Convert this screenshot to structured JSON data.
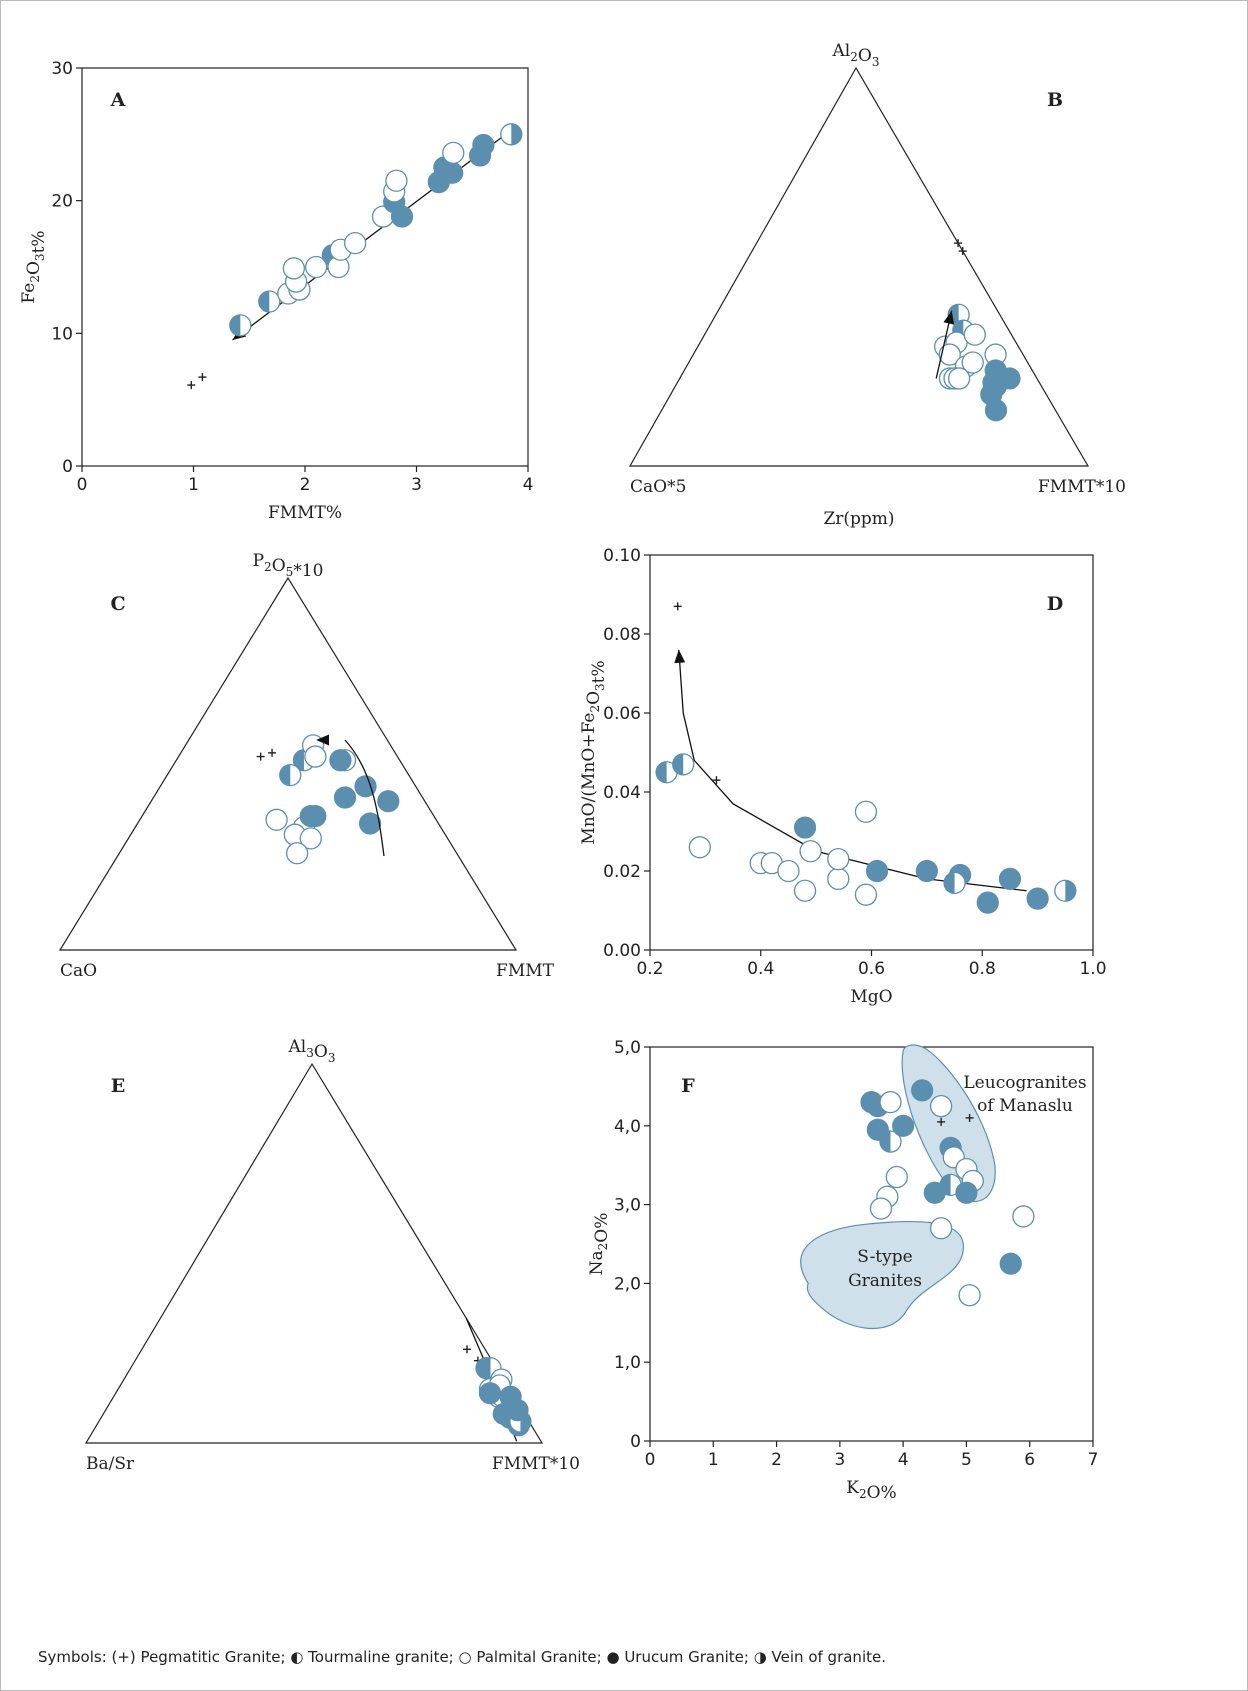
{
  "colors": {
    "blue": "#5b8fb0",
    "region_fill": "#cfe0ea",
    "region_stroke": "#5b8fb0",
    "axis": "#222222"
  },
  "legend_symbols": {
    "pegmatitic": "+",
    "tourmaline": "half-left",
    "palmital": "open",
    "urucum": "filled",
    "vein": "half-right"
  },
  "caption": "Symbols: (+) Pegmatitic Granite; ◐ Tourmaline granite; ○ Palmital Granite; ● Urucum Granite; ◑ Vein of granite.",
  "chart_data": [
    {
      "panel": "A",
      "type": "scatter",
      "xlabel": "FMMT%",
      "ylabel": "Fe2O3t%",
      "xlim": [
        0,
        4
      ],
      "ylim": [
        0,
        30
      ],
      "xticks": [
        "0",
        "1",
        "2",
        "3",
        "4"
      ],
      "yticks": [
        "0",
        "10",
        "20",
        "30"
      ],
      "trend_arrow": {
        "from": [
          3.8,
          25
        ],
        "to": [
          1.35,
          9.5
        ]
      },
      "points": [
        {
          "x": 0.98,
          "y": 6.1,
          "t": "pegmatitic"
        },
        {
          "x": 1.08,
          "y": 6.7,
          "t": "pegmatitic"
        },
        {
          "x": 1.42,
          "y": 10.6,
          "t": "tourmaline"
        },
        {
          "x": 1.68,
          "y": 12.4,
          "t": "tourmaline"
        },
        {
          "x": 1.85,
          "y": 13.0,
          "t": "palmital"
        },
        {
          "x": 1.95,
          "y": 13.3,
          "t": "palmital"
        },
        {
          "x": 1.92,
          "y": 13.9,
          "t": "palmital"
        },
        {
          "x": 1.9,
          "y": 14.9,
          "t": "palmital"
        },
        {
          "x": 2.1,
          "y": 15.0,
          "t": "palmital"
        },
        {
          "x": 2.25,
          "y": 15.9,
          "t": "urucum"
        },
        {
          "x": 2.3,
          "y": 15.0,
          "t": "palmital"
        },
        {
          "x": 2.32,
          "y": 16.3,
          "t": "palmital"
        },
        {
          "x": 2.45,
          "y": 16.8,
          "t": "palmital"
        },
        {
          "x": 2.7,
          "y": 18.8,
          "t": "palmital"
        },
        {
          "x": 2.8,
          "y": 19.9,
          "t": "urucum"
        },
        {
          "x": 2.87,
          "y": 18.8,
          "t": "urucum"
        },
        {
          "x": 2.8,
          "y": 20.7,
          "t": "palmital"
        },
        {
          "x": 2.82,
          "y": 21.5,
          "t": "palmital"
        },
        {
          "x": 3.2,
          "y": 21.4,
          "t": "urucum"
        },
        {
          "x": 3.25,
          "y": 22.5,
          "t": "urucum"
        },
        {
          "x": 3.32,
          "y": 22.1,
          "t": "urucum"
        },
        {
          "x": 3.33,
          "y": 23.6,
          "t": "palmital"
        },
        {
          "x": 3.57,
          "y": 23.4,
          "t": "urucum"
        },
        {
          "x": 3.6,
          "y": 24.2,
          "t": "urucum"
        },
        {
          "x": 3.85,
          "y": 25.0,
          "t": "vein"
        }
      ]
    },
    {
      "panel": "B",
      "type": "scatter",
      "ternary": true,
      "top_label": "Al2O3",
      "left_label": "CaO*5",
      "right_label": "FMMT*10",
      "bottom_label": "Zr(ppm)",
      "trend_arrow": {
        "from": [
          0.22,
          0.22,
          0.56
        ],
        "to": [
          0.39,
          0.1,
          0.51
        ]
      },
      "points": [
        {
          "x": [
            0.56,
            0.0,
            0.44
          ],
          "t": "pegmatitic"
        },
        {
          "x": [
            0.54,
            0.0,
            0.46
          ],
          "t": "pegmatitic"
        },
        {
          "x": [
            0.38,
            0.09,
            0.53
          ],
          "t": "tourmaline"
        },
        {
          "x": [
            0.34,
            0.1,
            0.56
          ],
          "t": "tourmaline"
        },
        {
          "x": [
            0.3,
            0.16,
            0.54
          ],
          "t": "palmital"
        },
        {
          "x": [
            0.31,
            0.13,
            0.56
          ],
          "t": "palmital"
        },
        {
          "x": [
            0.28,
            0.16,
            0.56
          ],
          "t": "palmital"
        },
        {
          "x": [
            0.33,
            0.08,
            0.59
          ],
          "t": "palmital"
        },
        {
          "x": [
            0.25,
            0.14,
            0.61
          ],
          "t": "palmital"
        },
        {
          "x": [
            0.22,
            0.19,
            0.59
          ],
          "t": "palmital"
        },
        {
          "x": [
            0.22,
            0.18,
            0.6
          ],
          "t": "palmital"
        },
        {
          "x": [
            0.22,
            0.17,
            0.61
          ],
          "t": "palmital"
        },
        {
          "x": [
            0.26,
            0.12,
            0.62
          ],
          "t": "palmital"
        },
        {
          "x": [
            0.28,
            0.06,
            0.66
          ],
          "t": "palmital"
        },
        {
          "x": [
            0.24,
            0.08,
            0.68
          ],
          "t": "urucum"
        },
        {
          "x": [
            0.21,
            0.1,
            0.69
          ],
          "t": "urucum"
        },
        {
          "x": [
            0.18,
            0.12,
            0.7
          ],
          "t": "urucum"
        },
        {
          "x": [
            0.22,
            0.06,
            0.72
          ],
          "t": "urucum"
        },
        {
          "x": [
            0.14,
            0.13,
            0.73
          ],
          "t": "urucum"
        },
        {
          "x": [
            0.2,
            0.1,
            0.7
          ],
          "t": "urucum"
        }
      ]
    },
    {
      "panel": "C",
      "type": "scatter",
      "ternary": true,
      "top_label": "P2O5*10",
      "left_label": "CaO",
      "right_label": "FMMT",
      "points": [
        {
          "x": [
            0.52,
            0.3,
            0.18
          ],
          "t": "pegmatitic"
        },
        {
          "x": [
            0.53,
            0.27,
            0.2
          ],
          "t": "pegmatitic"
        },
        {
          "x": [
            0.51,
            0.21,
            0.28
          ],
          "t": "tourmaline"
        },
        {
          "x": [
            0.47,
            0.26,
            0.27
          ],
          "t": "tourmaline"
        },
        {
          "x": [
            0.55,
            0.17,
            0.28
          ],
          "t": "palmital"
        },
        {
          "x": [
            0.52,
            0.18,
            0.3
          ],
          "t": "palmital"
        },
        {
          "x": [
            0.51,
            0.12,
            0.37
          ],
          "t": "palmital"
        },
        {
          "x": [
            0.35,
            0.35,
            0.3
          ],
          "t": "palmital"
        },
        {
          "x": [
            0.33,
            0.3,
            0.37
          ],
          "t": "palmital"
        },
        {
          "x": [
            0.31,
            0.33,
            0.36
          ],
          "t": "palmital"
        },
        {
          "x": [
            0.3,
            0.3,
            0.4
          ],
          "t": "palmital"
        },
        {
          "x": [
            0.26,
            0.35,
            0.39
          ],
          "t": "palmital"
        },
        {
          "x": [
            0.36,
            0.27,
            0.37
          ],
          "t": "urucum"
        },
        {
          "x": [
            0.36,
            0.26,
            0.38
          ],
          "t": "urucum"
        },
        {
          "x": [
            0.41,
            0.17,
            0.42
          ],
          "t": "urucum"
        },
        {
          "x": [
            0.51,
            0.13,
            0.36
          ],
          "t": "urucum"
        },
        {
          "x": [
            0.34,
            0.15,
            0.51
          ],
          "t": "urucum"
        },
        {
          "x": [
            0.4,
            0.08,
            0.52
          ],
          "t": "urucum"
        },
        {
          "x": [
            0.44,
            0.11,
            0.45
          ],
          "t": "urucum"
        }
      ]
    },
    {
      "panel": "D",
      "type": "scatter",
      "xlabel": "MgO",
      "ylabel": "MnO/(MnO+Fe2O3t%",
      "xlim": [
        0.2,
        1.0
      ],
      "ylim": [
        0.0,
        0.1
      ],
      "xticks": [
        "0.2",
        "0.4",
        "0.6",
        "0.8",
        "1.0"
      ],
      "yticks": [
        "0.00",
        "0.02",
        "0.04",
        "0.06",
        "0.08",
        "0.10"
      ],
      "trend_curve": [
        [
          0.88,
          0.015
        ],
        [
          0.7,
          0.018
        ],
        [
          0.5,
          0.025
        ],
        [
          0.35,
          0.037
        ],
        [
          0.28,
          0.048
        ],
        [
          0.26,
          0.06
        ],
        [
          0.252,
          0.076
        ]
      ],
      "points": [
        {
          "x": 0.25,
          "y": 0.087,
          "t": "pegmatitic"
        },
        {
          "x": 0.32,
          "y": 0.043,
          "t": "pegmatitic"
        },
        {
          "x": 0.23,
          "y": 0.045,
          "t": "tourmaline"
        },
        {
          "x": 0.26,
          "y": 0.047,
          "t": "tourmaline"
        },
        {
          "x": 0.29,
          "y": 0.026,
          "t": "palmital"
        },
        {
          "x": 0.4,
          "y": 0.022,
          "t": "palmital"
        },
        {
          "x": 0.42,
          "y": 0.022,
          "t": "palmital"
        },
        {
          "x": 0.45,
          "y": 0.02,
          "t": "palmital"
        },
        {
          "x": 0.48,
          "y": 0.015,
          "t": "palmital"
        },
        {
          "x": 0.49,
          "y": 0.025,
          "t": "palmital"
        },
        {
          "x": 0.54,
          "y": 0.018,
          "t": "palmital"
        },
        {
          "x": 0.54,
          "y": 0.023,
          "t": "palmital"
        },
        {
          "x": 0.59,
          "y": 0.035,
          "t": "palmital"
        },
        {
          "x": 0.59,
          "y": 0.014,
          "t": "palmital"
        },
        {
          "x": 0.48,
          "y": 0.031,
          "t": "urucum"
        },
        {
          "x": 0.61,
          "y": 0.02,
          "t": "urucum"
        },
        {
          "x": 0.7,
          "y": 0.02,
          "t": "urucum"
        },
        {
          "x": 0.76,
          "y": 0.019,
          "t": "urucum"
        },
        {
          "x": 0.75,
          "y": 0.017,
          "t": "tourmaline"
        },
        {
          "x": 0.81,
          "y": 0.012,
          "t": "urucum"
        },
        {
          "x": 0.85,
          "y": 0.018,
          "t": "urucum"
        },
        {
          "x": 0.9,
          "y": 0.013,
          "t": "urucum"
        },
        {
          "x": 0.95,
          "y": 0.015,
          "t": "vein"
        }
      ]
    },
    {
      "panel": "E",
      "type": "scatter",
      "ternary": true,
      "top_label": "Al3O3",
      "left_label": "Ba/Sr",
      "right_label": "FMMT*10",
      "trend_line": [
        [
          0.33,
          0.0,
          0.67
        ],
        [
          0.23,
          0.0,
          0.77
        ],
        [
          0.11,
          0.0,
          0.89
        ]
      ],
      "points": [
        {
          "x": [
            0.3,
            0.0,
            0.7
          ],
          "t": "pegmatitic"
        },
        {
          "x": [
            0.27,
            0.0,
            0.73
          ],
          "t": "pegmatitic"
        },
        {
          "x": [
            0.25,
            0.0,
            0.75
          ],
          "t": "tourmaline"
        },
        {
          "x": [
            0.25,
            0.0,
            0.75
          ],
          "t": "tourmaline"
        },
        {
          "x": [
            0.22,
            0.0,
            0.78
          ],
          "t": "palmital"
        },
        {
          "x": [
            0.2,
            0.0,
            0.8
          ],
          "t": "palmital"
        },
        {
          "x": [
            0.18,
            0.0,
            0.82
          ],
          "t": "palmital"
        },
        {
          "x": [
            0.18,
            0.0,
            0.82
          ],
          "t": "palmital"
        },
        {
          "x": [
            0.21,
            0.0,
            0.79
          ],
          "t": "palmital"
        },
        {
          "x": [
            0.18,
            0.0,
            0.82
          ],
          "t": "urucum"
        },
        {
          "x": [
            0.14,
            0.0,
            0.86
          ],
          "t": "urucum"
        },
        {
          "x": [
            0.13,
            0.0,
            0.87
          ],
          "t": "urucum"
        },
        {
          "x": [
            0.11,
            0.0,
            0.89
          ],
          "t": "urucum"
        },
        {
          "x": [
            0.12,
            0.0,
            0.88
          ],
          "t": "vein"
        },
        {
          "x": [
            0.15,
            0.0,
            0.85
          ],
          "t": "urucum"
        },
        {
          "x": [
            0.2,
            0.0,
            0.8
          ],
          "t": "urucum"
        }
      ]
    },
    {
      "panel": "F",
      "type": "scatter",
      "xlabel": "K2O%",
      "ylabel": "Na2O%",
      "xlim": [
        0,
        7
      ],
      "ylim": [
        0,
        5
      ],
      "xticks": [
        "0",
        "1",
        "2",
        "3",
        "4",
        "5",
        "6",
        "7"
      ],
      "yticks": [
        "0",
        "1,0",
        "2,0",
        "3,0",
        "4,0",
        "5,0"
      ],
      "regions": [
        {
          "name": "Leucogranites of Manaslu",
          "label_lines": [
            "Leucogranites",
            "of Manaslu"
          ]
        },
        {
          "name": "S-type Granites",
          "label_lines": [
            "S-type",
            "Granites"
          ]
        }
      ],
      "points": [
        {
          "x": 4.6,
          "y": 4.05,
          "t": "pegmatitic"
        },
        {
          "x": 5.05,
          "y": 4.1,
          "t": "pegmatitic"
        },
        {
          "x": 3.5,
          "y": 4.3,
          "t": "urucum"
        },
        {
          "x": 3.6,
          "y": 4.25,
          "t": "urucum"
        },
        {
          "x": 3.8,
          "y": 4.3,
          "t": "palmital"
        },
        {
          "x": 3.6,
          "y": 3.95,
          "t": "urucum"
        },
        {
          "x": 3.8,
          "y": 3.8,
          "t": "tourmaline"
        },
        {
          "x": 4.0,
          "y": 4.0,
          "t": "urucum"
        },
        {
          "x": 4.3,
          "y": 4.45,
          "t": "urucum"
        },
        {
          "x": 4.6,
          "y": 4.25,
          "t": "palmital"
        },
        {
          "x": 4.75,
          "y": 3.72,
          "t": "urucum"
        },
        {
          "x": 4.8,
          "y": 3.6,
          "t": "palmital"
        },
        {
          "x": 5.0,
          "y": 3.45,
          "t": "palmital"
        },
        {
          "x": 5.1,
          "y": 3.3,
          "t": "palmital"
        },
        {
          "x": 4.75,
          "y": 3.25,
          "t": "tourmaline"
        },
        {
          "x": 4.5,
          "y": 3.15,
          "t": "urucum"
        },
        {
          "x": 5.0,
          "y": 3.15,
          "t": "urucum"
        },
        {
          "x": 3.9,
          "y": 3.35,
          "t": "palmital"
        },
        {
          "x": 3.75,
          "y": 3.1,
          "t": "palmital"
        },
        {
          "x": 3.65,
          "y": 2.95,
          "t": "palmital"
        },
        {
          "x": 4.6,
          "y": 2.7,
          "t": "palmital"
        },
        {
          "x": 5.9,
          "y": 2.85,
          "t": "palmital"
        },
        {
          "x": 5.7,
          "y": 2.25,
          "t": "urucum"
        },
        {
          "x": 5.05,
          "y": 1.85,
          "t": "palmital"
        }
      ]
    }
  ]
}
